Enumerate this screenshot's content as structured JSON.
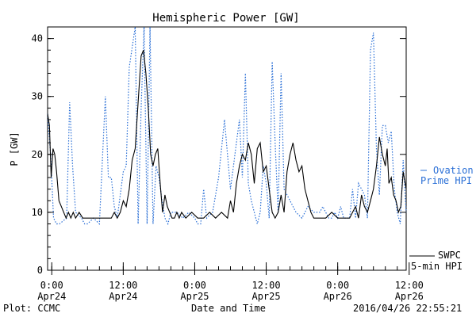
{
  "chart_data": {
    "type": "line",
    "title": "Hemispheric Power [GW]",
    "xlabel": "Date and Time",
    "ylabel": "P [GW]",
    "ylim": [
      0,
      42
    ],
    "yticks": [
      0,
      10,
      20,
      30,
      40
    ],
    "xlim_hours": [
      -0.7,
      59.5
    ],
    "x_ticks": [
      {
        "hour": 0,
        "time": "0:00",
        "date": "Apr24"
      },
      {
        "hour": 12,
        "time": "12:00",
        "date": "Apr24"
      },
      {
        "hour": 24,
        "time": "0:00",
        "date": "Apr25"
      },
      {
        "hour": 36,
        "time": "12:00",
        "date": "Apr25"
      },
      {
        "hour": 48,
        "time": "0:00",
        "date": "Apr26"
      },
      {
        "hour": 60,
        "time": "12:00",
        "date": "Apr26"
      }
    ],
    "series": [
      {
        "name": "SWPC 5-min HPI",
        "color": "#000000",
        "style": "solid",
        "x": [
          -0.7,
          -0.4,
          -0.1,
          0.2,
          0.5,
          0.8,
          1.2,
          1.6,
          2.0,
          2.4,
          2.8,
          3.2,
          3.6,
          4.0,
          4.6,
          5.2,
          6.0,
          7.0,
          8.0,
          9.0,
          10.0,
          10.5,
          11.0,
          11.5,
          12.0,
          12.5,
          13.0,
          13.5,
          14.0,
          14.5,
          15.0,
          15.4,
          15.8,
          16.2,
          16.6,
          17.0,
          17.4,
          17.8,
          18.2,
          18.6,
          19.0,
          19.4,
          19.8,
          20.2,
          20.6,
          21.0,
          21.4,
          21.8,
          22.5,
          23.5,
          24.5,
          25.5,
          26.5,
          27.5,
          28.5,
          29.5,
          30.0,
          30.5,
          31.0,
          31.5,
          32.0,
          32.5,
          33.0,
          33.5,
          34.0,
          34.5,
          35.0,
          35.5,
          36.0,
          36.5,
          37.0,
          37.5,
          38.0,
          38.5,
          39.0,
          39.5,
          40.0,
          40.5,
          41.0,
          41.5,
          42.0,
          42.5,
          43.0,
          43.5,
          44.0,
          44.5,
          45.0,
          46.0,
          47.0,
          48.0,
          49.0,
          50.0,
          50.5,
          51.0,
          51.5,
          52.0,
          52.5,
          53.0,
          53.5,
          54.0,
          54.5,
          55.0,
          55.5,
          56.0,
          56.3,
          56.6,
          57.0,
          57.4,
          57.8,
          58.2,
          58.6,
          59.0,
          59.5
        ],
        "values": [
          27,
          25,
          16,
          21,
          20,
          17,
          12,
          11,
          10,
          9,
          10,
          9,
          10,
          9,
          10,
          9,
          9,
          9,
          9,
          9,
          9,
          10,
          9,
          10,
          12,
          11,
          14,
          19,
          21,
          29,
          37,
          38,
          34,
          28,
          20,
          18,
          20,
          21,
          15,
          10,
          13,
          11,
          10,
          9,
          9,
          10,
          9,
          10,
          9,
          10,
          9,
          9,
          10,
          9,
          10,
          9,
          12,
          10,
          15,
          18,
          20,
          19,
          22,
          20,
          15,
          21,
          22,
          17,
          18,
          14,
          10,
          9,
          10,
          13,
          10,
          17,
          20,
          22,
          19,
          17,
          18,
          14,
          12,
          10,
          9,
          9,
          9,
          9,
          10,
          9,
          9,
          9,
          10,
          11,
          9,
          13,
          11,
          10,
          12,
          14,
          18,
          23,
          20,
          18,
          21,
          15,
          16,
          13,
          12,
          10,
          11,
          17,
          14
        ],
        "label": [
          "SWPC",
          "5-min HPI"
        ]
      },
      {
        "name": "Ovation Prime HPI",
        "color": "#2a6fd6",
        "style": "dotted",
        "x": [
          -0.7,
          -0.2,
          0.3,
          0.8,
          1.3,
          2.5,
          3.0,
          3.5,
          4.0,
          5.0,
          5.5,
          6.0,
          7.0,
          8.0,
          9.0,
          9.5,
          10.0,
          10.5,
          11.0,
          12.0,
          12.5,
          13.0,
          14.0,
          14.5,
          15.0,
          15.5,
          16.0,
          16.5,
          17.0,
          17.5,
          18.0,
          18.5,
          19.0,
          19.5,
          20.0,
          21.0,
          22.0,
          23.0,
          24.0,
          24.5,
          25.0,
          25.5,
          26.0,
          27.0,
          28.0,
          29.0,
          30.0,
          30.5,
          31.0,
          31.5,
          32.0,
          32.5,
          33.0,
          33.5,
          34.0,
          34.5,
          35.0,
          35.5,
          36.0,
          36.5,
          37.0,
          37.5,
          38.0,
          38.5,
          39.0,
          40.0,
          41.0,
          42.0,
          43.0,
          44.0,
          45.0,
          45.5,
          46.0,
          46.5,
          47.0,
          47.5,
          48.0,
          48.5,
          49.0,
          50.0,
          50.5,
          51.0,
          51.5,
          52.0,
          52.5,
          53.0,
          53.5,
          54.0,
          54.5,
          55.0,
          55.5,
          56.0,
          56.5,
          57.0,
          57.5,
          58.0,
          58.5,
          59.0,
          59.5
        ],
        "values": [
          27,
          20,
          9,
          8,
          8,
          9,
          29,
          18,
          10,
          9,
          8,
          8,
          9,
          8,
          30,
          16,
          16,
          11,
          9,
          17,
          18,
          35,
          42,
          8,
          28,
          42,
          8,
          42,
          8,
          18,
          16,
          12,
          9,
          8,
          10,
          10,
          9,
          10,
          9,
          8,
          8,
          14,
          9,
          10,
          16,
          26,
          14,
          18,
          22,
          26,
          16,
          34,
          15,
          12,
          10,
          8,
          10,
          18,
          15,
          9,
          36,
          22,
          10,
          34,
          14,
          12,
          10,
          9,
          11,
          10,
          10,
          11,
          10,
          9,
          9,
          10,
          9,
          11,
          9,
          9,
          14,
          9,
          15,
          14,
          13,
          9,
          38,
          41,
          21,
          13,
          25,
          25,
          22,
          24,
          14,
          10,
          8,
          19,
          10
        ]
      }
    ],
    "footer": {
      "left": "Plot: CCMC",
      "right": "2016/04/26 22:55:21"
    },
    "legend_placement": "right"
  }
}
